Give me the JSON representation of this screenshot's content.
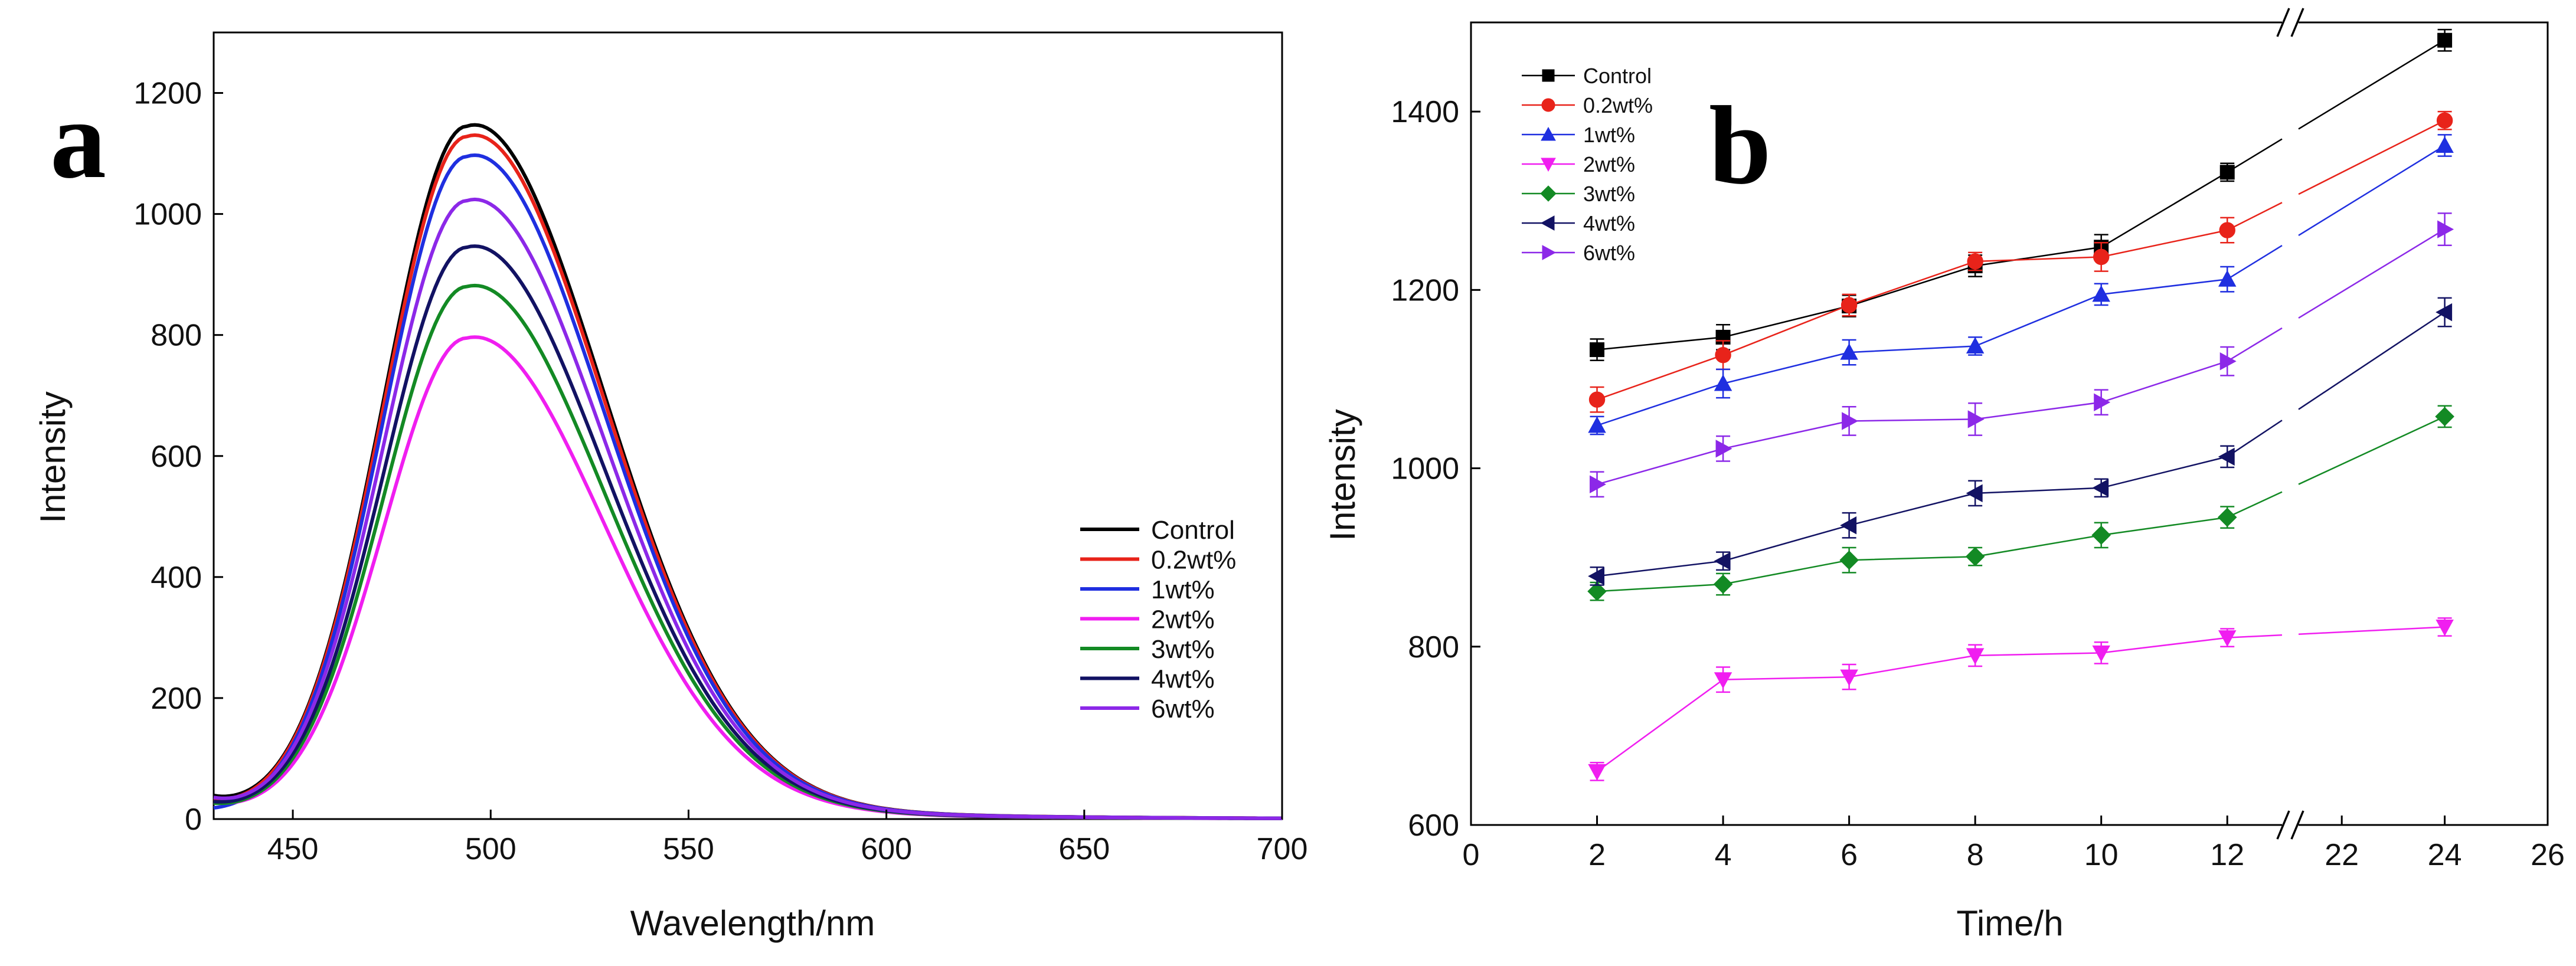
{
  "chart_data": [
    {
      "panel": "a",
      "type": "line",
      "xlabel": "Wavelength/nm",
      "ylabel": "Intensity",
      "xlim": [
        430,
        700
      ],
      "ylim": [
        0,
        1300
      ],
      "xticks": [
        450,
        500,
        550,
        600,
        650,
        700
      ],
      "yticks": [
        0,
        200,
        400,
        600,
        800,
        1000,
        1200
      ],
      "legend_position": "right-middle",
      "peak_wavelength": 494,
      "series": [
        {
          "name": "Control",
          "color": "#000000",
          "peak": 1145,
          "start": 28
        },
        {
          "name": "0.2wt%",
          "color": "#e8231a",
          "peak": 1128,
          "start": 22
        },
        {
          "name": "1wt%",
          "color": "#1f2fe0",
          "peak": 1095,
          "start": 8
        },
        {
          "name": "2wt%",
          "color": "#f01ef0",
          "peak": 795,
          "start": 20
        },
        {
          "name": "3wt%",
          "color": "#138a24",
          "peak": 880,
          "start": 18
        },
        {
          "name": "4wt%",
          "color": "#121263",
          "peak": 945,
          "start": 20
        },
        {
          "name": "6wt%",
          "color": "#8c28e8",
          "peak": 1022,
          "start": 26
        }
      ]
    },
    {
      "panel": "b",
      "type": "line",
      "xlabel": "Time/h",
      "ylabel": "Intensity",
      "x_break": [
        13,
        21
      ],
      "xlim": [
        0,
        26
      ],
      "ylim": [
        600,
        1500
      ],
      "xticks": [
        "0",
        "2",
        "4",
        "6",
        "8",
        "10",
        "12",
        "22",
        "24",
        "26"
      ],
      "yticks": [
        600,
        800,
        1000,
        1200,
        1400
      ],
      "x": [
        2,
        4,
        6,
        8,
        10,
        12,
        24
      ],
      "legend_position": "top-left",
      "series": [
        {
          "name": "Control",
          "color": "#000000",
          "marker": "square",
          "values": [
            1133,
            1147,
            1182,
            1227,
            1248,
            1332,
            1480
          ],
          "errors": [
            12,
            14,
            12,
            12,
            14,
            10,
            12
          ]
        },
        {
          "name": "0.2wt%",
          "color": "#e8231a",
          "marker": "circle",
          "values": [
            1077,
            1127,
            1183,
            1232,
            1237,
            1267,
            1390
          ],
          "errors": [
            14,
            16,
            12,
            10,
            16,
            14,
            10
          ]
        },
        {
          "name": "1wt%",
          "color": "#1f2fe0",
          "marker": "triangle-up",
          "values": [
            1048,
            1095,
            1130,
            1137,
            1195,
            1212,
            1362
          ],
          "errors": [
            10,
            16,
            14,
            10,
            12,
            14,
            12
          ]
        },
        {
          "name": "2wt%",
          "color": "#f01ef0",
          "marker": "triangle-down",
          "values": [
            660,
            763,
            766,
            790,
            793,
            810,
            822
          ],
          "errors": [
            10,
            14,
            14,
            12,
            12,
            10,
            10
          ]
        },
        {
          "name": "3wt%",
          "color": "#138a24",
          "marker": "diamond",
          "values": [
            862,
            870,
            897,
            901,
            925,
            945,
            1058
          ],
          "errors": [
            10,
            12,
            14,
            10,
            14,
            12,
            12
          ]
        },
        {
          "name": "4wt%",
          "color": "#121263",
          "marker": "triangle-left",
          "values": [
            879,
            896,
            936,
            972,
            978,
            1013,
            1175
          ],
          "errors": [
            10,
            10,
            14,
            14,
            10,
            12,
            16
          ]
        },
        {
          "name": "6wt%",
          "color": "#8c28e8",
          "marker": "triangle-right",
          "values": [
            982,
            1022,
            1053,
            1055,
            1074,
            1120,
            1268
          ],
          "errors": [
            14,
            14,
            16,
            18,
            14,
            16,
            18
          ]
        }
      ]
    }
  ],
  "panel_labels": {
    "a": "a",
    "b": "b"
  }
}
